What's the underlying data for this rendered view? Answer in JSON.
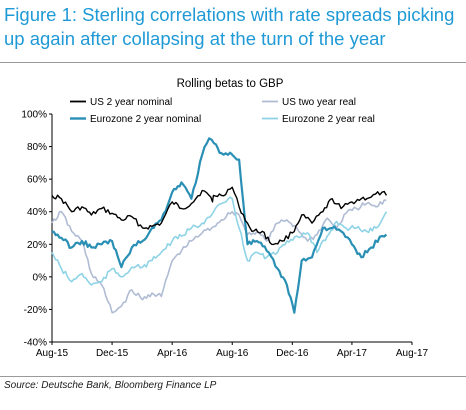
{
  "figure_title": "Figure 1: Sterling correlations with rate spreads picking up again after collapsing at the turn of the year",
  "source": "Source: Deutsche Bank, Bloomberg Finance LP",
  "chart_data": {
    "type": "line",
    "title": "Rolling betas to GBP",
    "xlabel": "",
    "ylabel": "",
    "x_ticks": [
      "Aug-15",
      "Dec-15",
      "Apr-16",
      "Aug-16",
      "Dec-16",
      "Apr-17",
      "Aug-17"
    ],
    "x_range": [
      "2015-08-01",
      "2017-08-01"
    ],
    "ylim": [
      -40,
      100
    ],
    "y_ticks": [
      "-40%",
      "-20%",
      "0%",
      "20%",
      "40%",
      "60%",
      "80%",
      "100%"
    ],
    "grid": false,
    "legend_position": "top",
    "series": [
      {
        "name": "US 2 year nominal",
        "color": "#000000",
        "x": [
          "2015-08-01",
          "2015-08-20",
          "2015-09-10",
          "2015-10-01",
          "2015-10-20",
          "2015-11-10",
          "2015-12-01",
          "2015-12-20",
          "2016-01-10",
          "2016-02-01",
          "2016-02-20",
          "2016-03-10",
          "2016-04-01",
          "2016-04-20",
          "2016-05-10",
          "2016-06-01",
          "2016-06-15",
          "2016-06-22",
          "2016-06-24",
          "2016-07-10",
          "2016-08-01",
          "2016-08-15",
          "2016-09-01",
          "2016-09-10",
          "2016-10-01",
          "2016-10-20",
          "2016-11-10",
          "2016-12-01",
          "2016-12-20",
          "2017-01-10",
          "2017-02-01",
          "2017-02-20",
          "2017-03-10",
          "2017-04-01",
          "2017-04-20",
          "2017-05-10",
          "2017-06-01",
          "2017-06-10"
        ],
        "values": [
          50,
          48,
          40,
          43,
          38,
          42,
          39,
          35,
          37,
          30,
          31,
          33,
          46,
          42,
          45,
          53,
          50,
          46,
          50,
          50,
          55,
          43,
          33,
          28,
          28,
          20,
          22,
          27,
          38,
          33,
          40,
          48,
          42,
          46,
          48,
          49,
          52,
          50
        ]
      },
      {
        "name": "US two year real",
        "color": "#b0bcd4",
        "x": [
          "2015-08-01",
          "2015-08-20",
          "2015-09-10",
          "2015-10-01",
          "2015-10-20",
          "2015-11-10",
          "2015-12-01",
          "2015-12-20",
          "2016-01-10",
          "2016-02-01",
          "2016-02-20",
          "2016-03-10",
          "2016-04-01",
          "2016-04-20",
          "2016-05-10",
          "2016-06-01",
          "2016-06-20",
          "2016-07-10",
          "2016-08-01",
          "2016-08-15",
          "2016-09-01",
          "2016-09-20",
          "2016-10-10",
          "2016-11-01",
          "2016-11-20",
          "2016-12-10",
          "2017-01-01",
          "2017-01-20",
          "2017-02-10",
          "2017-03-01",
          "2017-03-20",
          "2017-04-10",
          "2017-05-01",
          "2017-05-20",
          "2017-06-10"
        ],
        "values": [
          33,
          40,
          28,
          22,
          2,
          -5,
          -22,
          -18,
          -8,
          -14,
          -10,
          -12,
          10,
          16,
          22,
          27,
          30,
          35,
          40,
          38,
          26,
          28,
          22,
          33,
          35,
          30,
          22,
          26,
          36,
          30,
          39,
          42,
          45,
          43,
          47
        ]
      },
      {
        "name": "Eurozone 2 year nominal",
        "color": "#2a8fb5",
        "x": [
          "2015-08-01",
          "2015-08-20",
          "2015-09-10",
          "2015-10-01",
          "2015-10-20",
          "2015-11-10",
          "2015-12-01",
          "2015-12-20",
          "2016-01-10",
          "2016-02-01",
          "2016-02-20",
          "2016-03-10",
          "2016-04-01",
          "2016-04-20",
          "2016-05-10",
          "2016-06-01",
          "2016-06-15",
          "2016-06-25",
          "2016-07-10",
          "2016-08-01",
          "2016-08-15",
          "2016-09-01",
          "2016-09-20",
          "2016-10-10",
          "2016-11-01",
          "2016-11-20",
          "2016-12-05",
          "2016-12-20",
          "2017-01-10",
          "2017-02-01",
          "2017-02-20",
          "2017-03-10",
          "2017-04-01",
          "2017-04-20",
          "2017-05-10",
          "2017-06-01",
          "2017-06-10"
        ],
        "values": [
          28,
          24,
          18,
          22,
          18,
          20,
          22,
          6,
          18,
          22,
          30,
          35,
          52,
          58,
          48,
          75,
          85,
          82,
          76,
          75,
          72,
          20,
          22,
          16,
          5,
          -5,
          -22,
          10,
          12,
          30,
          30,
          28,
          20,
          12,
          18,
          25,
          26
        ]
      },
      {
        "name": "Eurozone 2 year real",
        "color": "#8fd3e6",
        "x": [
          "2015-08-01",
          "2015-08-20",
          "2015-09-10",
          "2015-10-01",
          "2015-10-20",
          "2015-11-10",
          "2015-12-01",
          "2015-12-20",
          "2016-01-10",
          "2016-02-01",
          "2016-02-20",
          "2016-03-10",
          "2016-04-01",
          "2016-04-20",
          "2016-05-10",
          "2016-06-01",
          "2016-06-20",
          "2016-07-10",
          "2016-08-01",
          "2016-08-15",
          "2016-09-01",
          "2016-09-20",
          "2016-10-10",
          "2016-11-01",
          "2016-11-20",
          "2016-12-10",
          "2017-01-01",
          "2017-01-20",
          "2017-02-10",
          "2017-03-01",
          "2017-03-20",
          "2017-04-10",
          "2017-05-01",
          "2017-05-20",
          "2017-06-10"
        ],
        "values": [
          15,
          5,
          -3,
          2,
          -5,
          -3,
          5,
          0,
          6,
          6,
          10,
          15,
          22,
          25,
          30,
          33,
          38,
          45,
          48,
          30,
          10,
          15,
          12,
          15,
          22,
          25,
          27,
          15,
          25,
          34,
          30,
          30,
          28,
          30,
          40
        ]
      }
    ]
  }
}
